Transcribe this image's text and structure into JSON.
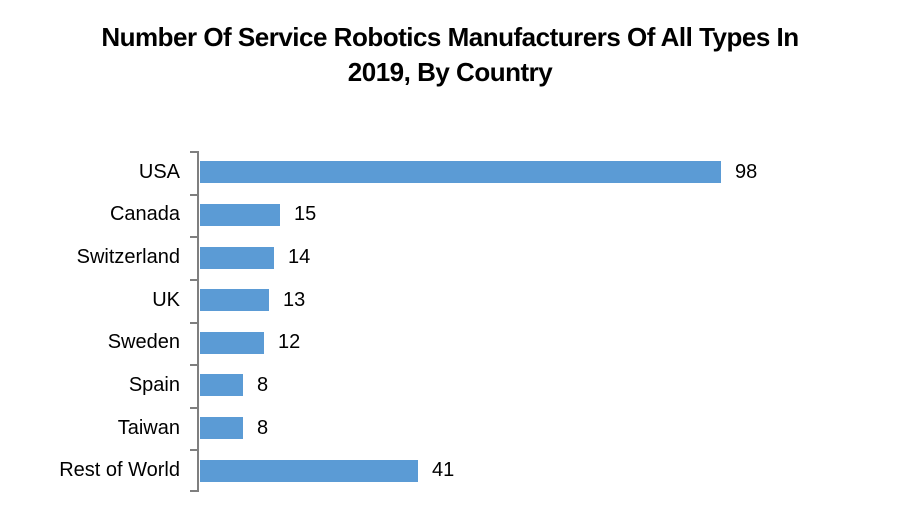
{
  "title_lines": [
    "Number Of Service Robotics Manufacturers Of All Types In",
    "2019, By Country"
  ],
  "colors": {
    "bar": "#5B9BD5",
    "axis": "#7F7F7F",
    "title_text": "#000000",
    "label_text": "#000000",
    "background": "#FFFFFF"
  },
  "chart_data": {
    "type": "bar",
    "orientation": "horizontal",
    "title": "Number Of Service Robotics Manufacturers Of All Types In 2019, By Country",
    "categories": [
      "USA",
      "Canada",
      "Switzerland",
      "UK",
      "Sweden",
      "Spain",
      "Taiwan",
      "Rest of World"
    ],
    "values": [
      98,
      15,
      14,
      13,
      12,
      8,
      8,
      41
    ],
    "data_labels": [
      98,
      15,
      14,
      13,
      12,
      8,
      8,
      41
    ],
    "xlabel": "",
    "ylabel": "",
    "xlim": [
      0,
      98
    ],
    "grid": false,
    "legend": false
  }
}
